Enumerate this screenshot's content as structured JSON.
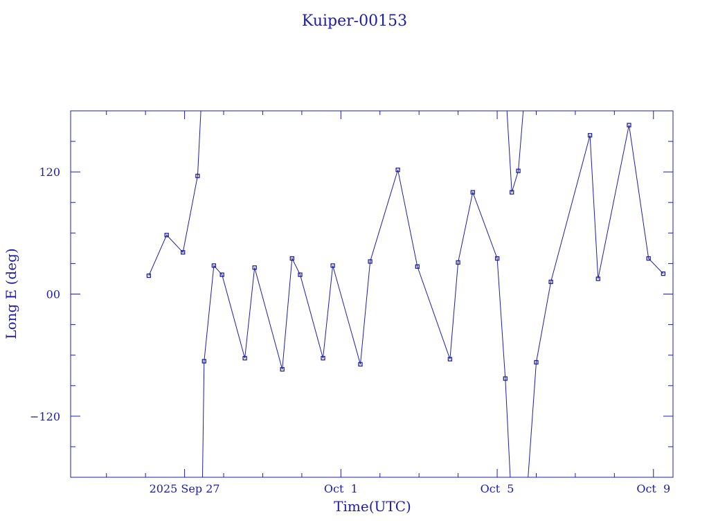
{
  "chart_data": {
    "type": "line",
    "title": "Kuiper-00153",
    "xlabel": "Time(UTC)",
    "ylabel": "Long E (deg)",
    "x_tick_labels": [
      "2025 Sep 27",
      "Oct  1",
      "Oct  5",
      "Oct  9"
    ],
    "x_tick_dates": [
      "2025-09-27",
      "2025-10-01",
      "2025-10-05",
      "2025-10-09"
    ],
    "y_tick_labels": [
      "120",
      "00",
      "−120"
    ],
    "y_tick_values": [
      120,
      0,
      -120
    ],
    "xlim": [
      "2025-09-24T02:00",
      "2025-10-09T12:00"
    ],
    "ylim": [
      -180,
      180
    ],
    "marker": "square",
    "color": "#1c1ca8",
    "points": [
      {
        "t": "2025-09-26T02:00",
        "lon": 18
      },
      {
        "t": "2025-09-26T13:00",
        "lon": 58
      },
      {
        "t": "2025-09-26T23:00",
        "lon": 41
      },
      {
        "t": "2025-09-27T08:00",
        "lon": 116
      },
      {
        "t": "2025-09-27T11:00",
        "lon": -180
      },
      {
        "t": "2025-09-27T12:00",
        "lon": -66
      },
      {
        "t": "2025-09-27T18:00",
        "lon": 28
      },
      {
        "t": "2025-09-27T23:00",
        "lon": 19
      },
      {
        "t": "2025-09-28T13:00",
        "lon": -63
      },
      {
        "t": "2025-09-28T19:00",
        "lon": 26
      },
      {
        "t": "2025-09-29T12:00",
        "lon": -74
      },
      {
        "t": "2025-09-29T18:00",
        "lon": 35
      },
      {
        "t": "2025-09-29T23:00",
        "lon": 19
      },
      {
        "t": "2025-09-30T13:00",
        "lon": -63
      },
      {
        "t": "2025-09-30T19:00",
        "lon": 28
      },
      {
        "t": "2025-10-01T12:00",
        "lon": -69
      },
      {
        "t": "2025-10-01T18:00",
        "lon": 32
      },
      {
        "t": "2025-10-02T11:00",
        "lon": 122
      },
      {
        "t": "2025-10-02T23:00",
        "lon": 27
      },
      {
        "t": "2025-10-03T19:00",
        "lon": -64
      },
      {
        "t": "2025-10-04T00:00",
        "lon": 31
      },
      {
        "t": "2025-10-04T09:00",
        "lon": 100
      },
      {
        "t": "2025-10-05T00:00",
        "lon": 35
      },
      {
        "t": "2025-10-05T05:00",
        "lon": -83
      },
      {
        "t": "2025-10-05T08:00",
        "lon": -180
      },
      {
        "t": "2025-10-05T19:00",
        "lon": -180
      },
      {
        "t": "2025-10-06T00:00",
        "lon": -67
      },
      {
        "t": "2025-10-06T09:00",
        "lon": 12
      },
      {
        "t": "2025-10-07T09:00",
        "lon": 156
      },
      {
        "t": "2025-10-07T14:00",
        "lon": 15
      },
      {
        "t": "2025-10-08T09:00",
        "lon": 166
      },
      {
        "t": "2025-10-08T21:00",
        "lon": 35
      },
      {
        "t": "2025-10-09T06:00",
        "lon": 20
      },
      {
        "t": "2025-10-05T06:00",
        "lon": 180
      },
      {
        "t": "2025-10-05T09:00",
        "lon": 100
      },
      {
        "t": "2025-10-05T13:00",
        "lon": 121
      },
      {
        "t": "2025-10-05T16:00",
        "lon": 180
      }
    ],
    "segments": [
      [
        0,
        1,
        2,
        3
      ],
      [
        4,
        5,
        6,
        7,
        8,
        9,
        10,
        11,
        12,
        13,
        14,
        15,
        16,
        17,
        18,
        19,
        20,
        21,
        22,
        23,
        24
      ],
      [
        25,
        26,
        27,
        28,
        29,
        30,
        31,
        32
      ],
      [
        33,
        34,
        35,
        36
      ]
    ],
    "wrap_segments": [
      {
        "from": 3,
        "to_t": "2025-09-27T10:00",
        "to_lon": 180
      }
    ],
    "hidden_markers": [
      4,
      24,
      25,
      33,
      36
    ]
  }
}
